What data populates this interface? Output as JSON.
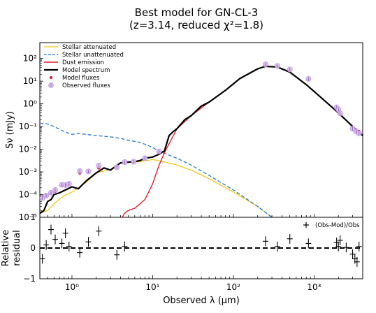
{
  "title_line1": "Best model for GN-CL-3",
  "title_line2": "(z=3.14, reduced χ²=1.8)",
  "chart_data": {
    "type": "line",
    "xscale": "log",
    "yscale": "log",
    "xlabel": "Observed λ (μm)",
    "ylabel": "Sν (mJy)",
    "xlim": [
      0.4,
      4000
    ],
    "ylim": [
      1e-05,
      500
    ],
    "x_tick_labels": [
      "10⁰",
      "10¹",
      "10²",
      "10³"
    ],
    "x_tick_values": [
      1,
      10,
      100,
      1000
    ],
    "y_tick_labels": [
      "10⁻⁵",
      "10⁻⁴",
      "10⁻³",
      "10⁻²",
      "10⁻¹",
      "10⁰",
      "10¹",
      "10²"
    ],
    "y_tick_values": [
      1e-05,
      0.0001,
      0.001,
      0.01,
      0.1,
      1,
      10,
      100
    ],
    "legend_position": "top-left",
    "series": [
      {
        "name": "Stellar attenuated",
        "style": "solid",
        "color": "#f5c518",
        "x": [
          0.4,
          0.5,
          0.6,
          0.8,
          1.0,
          1.5,
          2.0,
          3.0,
          4.0,
          5.0,
          7.0,
          10.0,
          12.0,
          15.0,
          20.0,
          30.0,
          50.0,
          100.0,
          200.0,
          300.0
        ],
        "y": [
          1.5e-05,
          2e-05,
          4e-05,
          9e-05,
          0.00013,
          0.00035,
          0.0009,
          0.0013,
          0.0025,
          0.0027,
          0.0028,
          0.0035,
          0.0031,
          0.0026,
          0.002,
          0.0012,
          0.0005,
          0.00013,
          3e-05,
          1e-05
        ]
      },
      {
        "name": "Stellar unattenuated",
        "style": "dashed",
        "color": "#1f77d4",
        "x": [
          0.4,
          0.5,
          0.6,
          0.8,
          1.0,
          1.2,
          1.5,
          2.0,
          3.0,
          4.0,
          5.0,
          7.0,
          10.0,
          12.0,
          15.0,
          20.0,
          30.0,
          50.0,
          100.0,
          200.0,
          300.0
        ],
        "y": [
          0.14,
          0.13,
          0.1,
          0.06,
          0.045,
          0.05,
          0.045,
          0.04,
          0.035,
          0.03,
          0.025,
          0.02,
          0.012,
          0.008,
          0.006,
          0.004,
          0.002,
          0.0007,
          0.00016,
          3e-05,
          1e-05
        ]
      },
      {
        "name": "Dust emission",
        "style": "solid",
        "color": "#e32020",
        "x": [
          4.2,
          4.5,
          5.0,
          6.0,
          8.0,
          10.0,
          12.0,
          14.0,
          20.0,
          30.0,
          50.0,
          80.0,
          120.0,
          200.0,
          250.0,
          350.0,
          500.0,
          800.0,
          1200.0,
          2000.0,
          3000.0,
          4000.0
        ],
        "y": [
          1e-05,
          1.5e-05,
          2e-05,
          2.5e-05,
          6e-05,
          0.0003,
          0.002,
          0.007,
          0.08,
          0.3,
          1.2,
          4.0,
          13.0,
          35.0,
          45.0,
          42.0,
          25.0,
          7.0,
          2.0,
          0.4,
          0.1,
          0.04
        ]
      },
      {
        "name": "Model spectrum",
        "style": "solid",
        "color": "#000000",
        "x": [
          0.4,
          0.45,
          0.5,
          0.55,
          0.6,
          0.7,
          0.8,
          1.0,
          1.2,
          1.5,
          2.0,
          2.5,
          3.0,
          3.5,
          4.0,
          5.0,
          6.0,
          7.0,
          8.0,
          10.0,
          12.0,
          14.0,
          16.0,
          18.0,
          20.0,
          25.0,
          30.0,
          40.0,
          50.0,
          80.0,
          120.0,
          200.0,
          250.0,
          350.0,
          500.0,
          800.0,
          1200.0,
          2000.0,
          3000.0,
          4000.0
        ],
        "y": [
          1.5e-05,
          2e-05,
          5e-05,
          6e-05,
          0.0001,
          0.00012,
          0.00015,
          0.00022,
          0.00018,
          0.0004,
          0.0009,
          0.0015,
          0.0012,
          0.0018,
          0.0025,
          0.0027,
          0.0028,
          0.0032,
          0.004,
          0.0045,
          0.006,
          0.0085,
          0.04,
          0.06,
          0.08,
          0.2,
          0.3,
          0.8,
          1.2,
          4.0,
          13.0,
          35.0,
          45.0,
          42.0,
          25.0,
          7.0,
          2.0,
          0.4,
          0.1,
          0.04
        ]
      },
      {
        "name": "Model fluxes",
        "style": "markers",
        "color": "#e3204a",
        "x": [
          0.43,
          0.48,
          0.55,
          0.62,
          0.75,
          0.83,
          0.92,
          1.25,
          1.6,
          2.15,
          3.6,
          4.5,
          5.8,
          8.0,
          12.0,
          250,
          350,
          500,
          850,
          1900,
          2000,
          2100,
          3000,
          3300,
          3600
        ],
        "y": [
          8e-05,
          9e-05,
          0.00011,
          0.00014,
          0.00025,
          0.00027,
          0.00028,
          0.0009,
          0.001,
          0.0015,
          0.0017,
          0.0025,
          0.0027,
          0.004,
          0.007,
          50,
          45,
          30,
          12,
          0.6,
          0.5,
          0.35,
          0.09,
          0.07,
          0.06
        ]
      },
      {
        "name": "Observed fluxes",
        "style": "markers",
        "color": "#b58be0",
        "x": [
          0.43,
          0.48,
          0.55,
          0.62,
          0.75,
          0.83,
          0.92,
          1.25,
          1.6,
          2.15,
          3.6,
          4.5,
          5.8,
          8.0,
          12.0,
          250,
          350,
          500,
          850,
          1900,
          2000,
          2100,
          3000,
          3300,
          3600
        ],
        "y": [
          7e-05,
          9e-05,
          0.00012,
          0.00016,
          0.00027,
          0.00026,
          0.0003,
          0.0011,
          0.00105,
          0.0019,
          0.0016,
          0.0027,
          0.0028,
          0.004,
          0.008,
          55,
          47,
          33,
          12.5,
          0.7,
          0.55,
          0.38,
          0.08,
          0.06,
          0.05
        ]
      }
    ],
    "residual_panel": {
      "ylabel": "Relative residual",
      "ylim": [
        -1,
        1
      ],
      "y_tick_labels": [
        "−1",
        "0",
        "1"
      ],
      "y_tick_values": [
        -1,
        0,
        1
      ],
      "legend_label": "(Obs-Mod)/Obs",
      "x": [
        0.43,
        0.48,
        0.55,
        0.62,
        0.75,
        0.83,
        0.92,
        1.25,
        1.6,
        2.15,
        3.6,
        4.5,
        250,
        350,
        500,
        850,
        1900,
        2000,
        2100,
        2500,
        3000,
        3200,
        3400,
        3600
      ],
      "y": [
        -0.35,
        0.1,
        0.6,
        0.28,
        0.15,
        0.48,
        0.05,
        -0.15,
        0.2,
        0.55,
        -0.22,
        0.05,
        0.22,
        0.05,
        0.3,
        0.15,
        0.18,
        0.05,
        0.25,
        0.02,
        -0.2,
        -0.35,
        -0.45,
        0.05
      ]
    }
  }
}
